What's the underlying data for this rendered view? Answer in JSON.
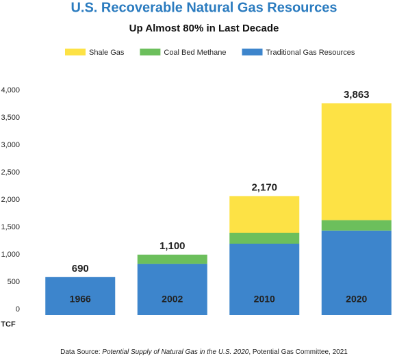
{
  "chart_data": {
    "type": "stacked-bar",
    "title": "U.S. Recoverable Natural Gas Resources",
    "subtitle": "Up Almost 80% in Last Decade",
    "y_label": "TCF",
    "categories": [
      "1966",
      "2002",
      "2010",
      "2020"
    ],
    "series": [
      {
        "name": "Traditional Gas Resources",
        "color": "#3d85cc",
        "values": [
          690,
          930,
          1300,
          1540
        ]
      },
      {
        "name": "Coal Bed Methane",
        "color": "#6cbf5c",
        "values": [
          0,
          170,
          200,
          190
        ]
      },
      {
        "name": "Shale Gas",
        "color": "#fde245",
        "values": [
          0,
          0,
          670,
          2133
        ]
      }
    ],
    "legend_order": [
      2,
      1,
      0
    ],
    "totals": [
      690,
      1100,
      2170,
      3863
    ],
    "total_labels": [
      "690",
      "1,100",
      "2,170",
      "3,863"
    ],
    "ylim": [
      0,
      4000
    ],
    "yticks": [
      0,
      500,
      {
        "value": 1000,
        "label": "1,000"
      },
      {
        "value": 1500,
        "label": "1,500"
      },
      {
        "value": 2000,
        "label": "2,000"
      },
      {
        "value": 2500,
        "label": "2,500"
      },
      {
        "value": 3000,
        "label": "3,000"
      },
      {
        "value": 3500,
        "label": "3,500"
      },
      {
        "value": 4000,
        "label": "4,000"
      }
    ],
    "source": {
      "prefix": "Data Source: ",
      "title": "Potential Supply of Natural Gas in the U.S. 2020",
      "suffix": ", Potential Gas Committee, 2021"
    }
  }
}
